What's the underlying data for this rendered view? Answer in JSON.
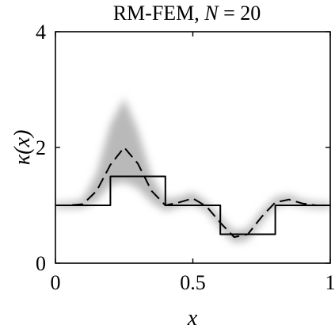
{
  "chart_data": {
    "type": "line",
    "title": "RM-FEM, N = 20",
    "title_parts": {
      "text": "RM-FEM, ",
      "symbol": "N",
      "rest": " = 20"
    },
    "xlabel": "x",
    "ylabel": "κ(x)",
    "ylabel_parts": {
      "symbol": "κ",
      "arg": "(x)"
    },
    "xlim": [
      0,
      1
    ],
    "ylim": [
      0,
      4
    ],
    "xticks": [
      0,
      0.5,
      1
    ],
    "xtick_labels": [
      "0",
      "0.5",
      "1"
    ],
    "yticks": [
      0,
      2,
      4
    ],
    "ytick_labels": [
      "0",
      "2",
      "4"
    ],
    "grid": false,
    "series": [
      {
        "style": "solid-step",
        "color": "#000000",
        "x": [
          0,
          0.2,
          0.2,
          0.4,
          0.4,
          0.6,
          0.6,
          0.8,
          0.8,
          1.0
        ],
        "y": [
          1,
          1,
          1.5,
          1.5,
          1,
          1,
          0.5,
          0.5,
          1,
          1
        ]
      },
      {
        "style": "dashed",
        "color": "#000000",
        "x": [
          0,
          0.05,
          0.1,
          0.15,
          0.2,
          0.25,
          0.3,
          0.35,
          0.4,
          0.45,
          0.5,
          0.55,
          0.6,
          0.65,
          0.7,
          0.75,
          0.8,
          0.85,
          0.9,
          0.95,
          1.0
        ],
        "y": [
          1.0,
          1.0,
          1.02,
          1.25,
          1.7,
          2.0,
          1.72,
          1.25,
          1.0,
          1.05,
          1.12,
          0.98,
          0.7,
          0.45,
          0.5,
          0.8,
          1.05,
          1.1,
          1.03,
          1.0,
          1.0
        ]
      }
    ],
    "uncertainty_band": {
      "color": "#808080",
      "x": [
        0,
        0.05,
        0.1,
        0.15,
        0.2,
        0.25,
        0.3,
        0.35,
        0.4,
        0.45,
        0.5,
        0.55,
        0.6,
        0.65,
        0.7,
        0.75,
        0.8,
        0.85,
        0.9,
        0.95,
        1.0
      ],
      "lower": [
        0.95,
        0.95,
        0.96,
        1.08,
        1.35,
        1.4,
        1.3,
        1.05,
        0.9,
        0.98,
        1.02,
        0.9,
        0.6,
        0.35,
        0.4,
        0.7,
        0.98,
        1.03,
        0.98,
        0.95,
        0.95
      ],
      "upper": [
        1.05,
        1.05,
        1.1,
        1.55,
        2.4,
        2.85,
        2.3,
        1.5,
        1.1,
        1.14,
        1.22,
        1.06,
        0.8,
        0.55,
        0.6,
        0.9,
        1.14,
        1.18,
        1.09,
        1.05,
        1.05
      ]
    }
  }
}
